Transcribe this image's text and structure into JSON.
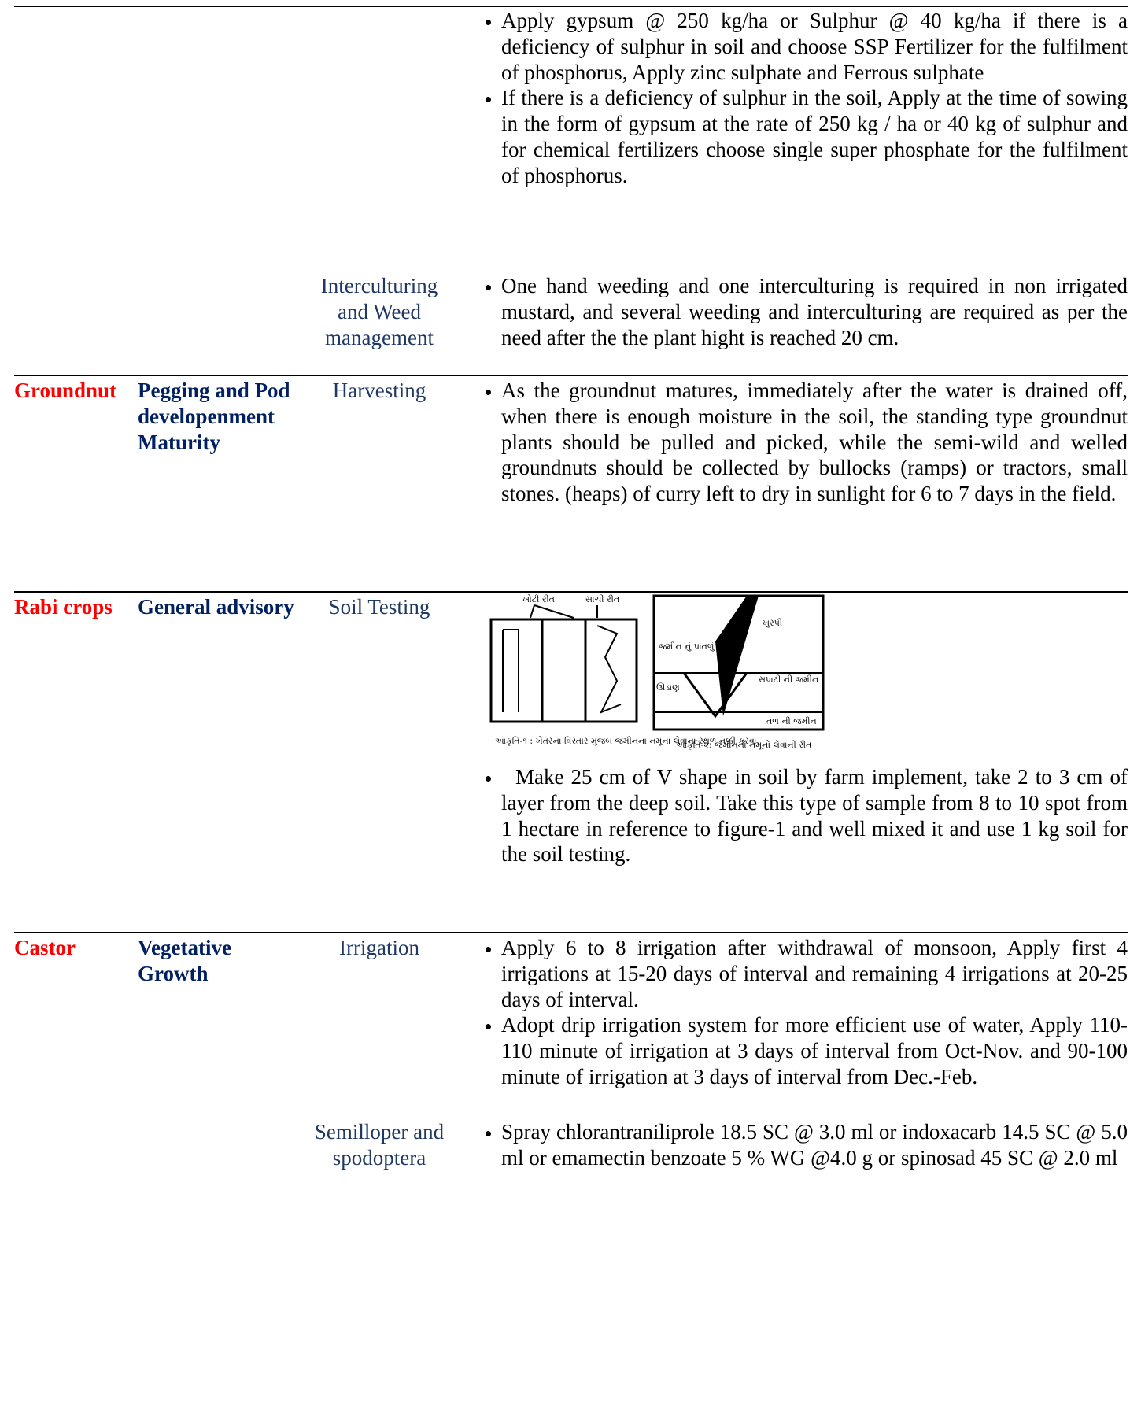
{
  "table": {
    "rows": [
      {
        "bullets": [
          "Apply gypsum @ 250 kg/ha or Sulphur @ 40 kg/ha if there is a deficiency of sulphur in soil and choose SSP Fertilizer for the fulfilment of phosphorus, Apply zinc sulphate and Ferrous sulphate",
          "If there is a deficiency of sulphur in the soil, Apply at the time of sowing in the form of gypsum at the rate of 250 kg / ha or 40 kg of sulphur and for chemical fertilizers choose single super phosphate for the fulfilment of phosphorus."
        ]
      },
      {
        "activity": "Interculturing and Weed management",
        "bullets": [
          "One hand weeding and one interculturing is required in non irrigated mustard, and several weeding and interculturing are required as per the need after the the plant hight is reached 20 cm."
        ]
      },
      {
        "crop": "Groundnut",
        "stage": "Pegging and Pod developenment Maturity",
        "activity": "Harvesting",
        "bullets": [
          "As the groundnut matures, immediately after the water is drained off, when there is enough moisture in the soil, the standing type groundnut plants should be pulled and picked, while the semi-wild and welled groundnuts should be collected by bullocks (ramps) or tractors, small stones. (heaps) of curry left to dry in sunlight for 6 to 7 days in the field."
        ]
      },
      {
        "crop": "Rabi crops",
        "stage": "General advisory",
        "activity": "Soil Testing",
        "figure": {
          "left": {
            "wrong": "ખોટી રીત",
            "right": "સાચી રીત",
            "caption": "આકૃતિ-૧ : ખેતરના વિસ્તાર મુજબ જમીનના નમૂના લેવાના સ્થળ નક્કી કરવા."
          },
          "right": {
            "layer": "જમીન નું પાતળું પડ",
            "tool": "ખુરપી",
            "depth": "ઊંડાણ",
            "surface": "સપાટી ની જમીન",
            "bottom": "તળ ની જમીન",
            "caption": "આકૃતિ-૨: જમીનનો નમૂનો લેવાની રીત"
          }
        },
        "bullets": [
          "Make 25 cm of V shape in soil by farm implement, take 2 to 3 cm of layer from the deep soil. Take this type of sample from 8 to 10 spot from 1 hectare in reference to figure-1 and well mixed it and use 1 kg soil for the soil testing."
        ]
      },
      {
        "crop": "Castor",
        "stage": "Vegetative Growth",
        "activity": "Irrigation",
        "bullets": [
          "Apply 6 to 8 irrigation after withdrawal of monsoon, Apply first 4 irrigations at 15-20 days of interval and remaining 4 irrigations at 20-25 days of interval.",
          "Adopt drip irrigation system for more efficient use of water, Apply 110-110 minute of irrigation at 3 days of interval from Oct-Nov. and 90-100 minute of irrigation at 3 days of interval from Dec.-Feb."
        ]
      },
      {
        "activity": "Semilloper and spodoptera",
        "bullets": [
          "Spray chlorantraniliprole 18.5 SC @ 3.0 ml or indoxacarb 14.5 SC @ 5.0 ml or emamectin benzoate 5 % WG @4.0 g or spinosad 45 SC @ 2.0 ml"
        ]
      }
    ]
  }
}
